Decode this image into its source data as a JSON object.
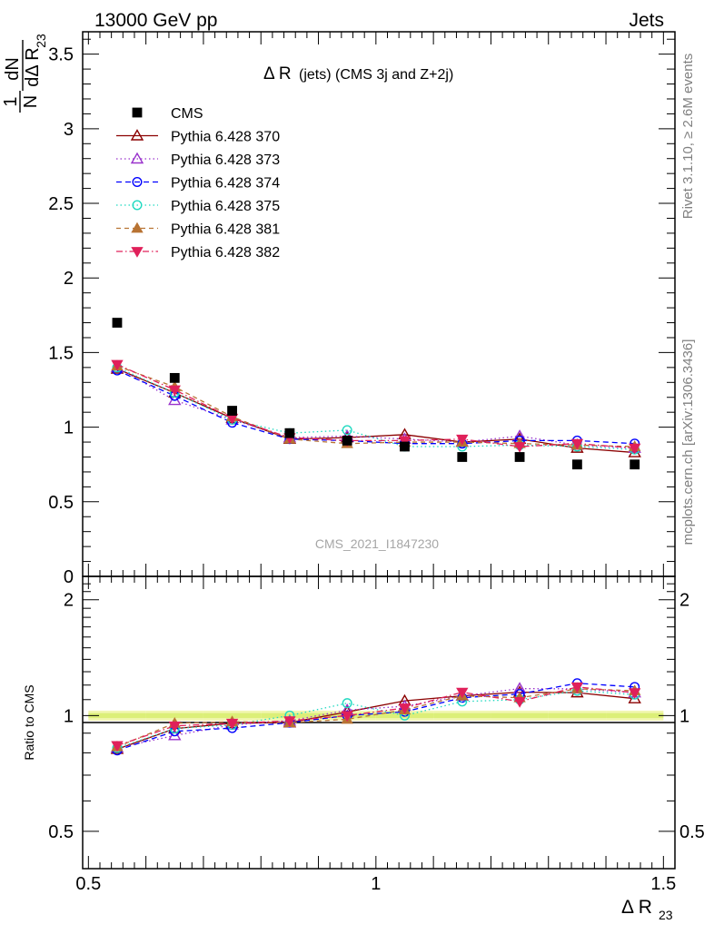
{
  "header": {
    "left": "13000 GeV pp",
    "right": "Jets"
  },
  "side_texts": {
    "rivet": "Rivet 3.1.10, ≥ 2.6M events",
    "mcplots": "mcplots.cern.ch [arXiv:1306.3436]"
  },
  "watermark": "CMS_2021_I1847230",
  "plot_title": {
    "main": "Δ R",
    "detail": " (jets) (CMS 3j and Z+2j)"
  },
  "ylabel_top": {
    "frac_num": "1",
    "frac_den": "N",
    "dN": "dN",
    "dDelta": "dΔ R",
    "sub": "23"
  },
  "ylabel_ratio": "Ratio to CMS",
  "xlabel": {
    "main": "Δ R",
    "sub": "23"
  },
  "chart_data": {
    "type": "line",
    "x": [
      0.55,
      0.65,
      0.75,
      0.85,
      0.95,
      1.05,
      1.15,
      1.25,
      1.35,
      1.45
    ],
    "xlim": [
      0.49,
      1.52
    ],
    "ylim_main": [
      0,
      3.65
    ],
    "ylim_ratio": [
      0.4,
      2.3
    ],
    "xticks": [
      0.5,
      1,
      1.5
    ],
    "xtick_labels": [
      "0.5",
      "1",
      "1.5"
    ],
    "yticks_main": [
      0,
      0.5,
      1,
      1.5,
      2,
      2.5,
      3,
      3.5
    ],
    "ytick_labels_main": [
      "0",
      "0.5",
      "1",
      "1.5",
      "2",
      "2.5",
      "3",
      "3.5"
    ],
    "yticks_ratio": [
      0.5,
      1,
      2
    ],
    "ytick_labels_ratio": [
      "0.5",
      "1",
      "2"
    ],
    "data": {
      "name": "CMS",
      "values": [
        1.7,
        1.33,
        1.11,
        0.96,
        0.91,
        0.87,
        0.8,
        0.8,
        0.75,
        0.75
      ]
    },
    "series": [
      {
        "name": "Pythia 6.428 370",
        "color": "#8b0000",
        "dash": "",
        "marker": "triangle-open",
        "values": [
          1.39,
          1.23,
          1.06,
          0.92,
          0.93,
          0.95,
          0.9,
          0.92,
          0.86,
          0.83
        ]
      },
      {
        "name": "Pythia 6.428 373",
        "color": "#9932cc",
        "dash": "1.5,3",
        "marker": "triangle-open",
        "values": [
          1.4,
          1.18,
          1.05,
          0.93,
          0.94,
          0.92,
          0.9,
          0.94,
          0.88,
          0.86
        ]
      },
      {
        "name": "Pythia 6.428 374",
        "color": "#0000ff",
        "dash": "6,4",
        "marker": "circle-open",
        "values": [
          1.38,
          1.21,
          1.03,
          0.92,
          0.91,
          0.89,
          0.89,
          0.91,
          0.91,
          0.89
        ]
      },
      {
        "name": "Pythia 6.428 375",
        "color": "#1fd9c0",
        "dash": "1.5,3",
        "marker": "circle-open",
        "values": [
          1.4,
          1.23,
          1.05,
          0.96,
          0.98,
          0.87,
          0.87,
          0.88,
          0.87,
          0.85
        ]
      },
      {
        "name": "Pythia 6.428 381",
        "color": "#b87333",
        "dash": "5,4",
        "marker": "triangle-filled",
        "values": [
          1.41,
          1.27,
          1.07,
          0.92,
          0.89,
          0.9,
          0.9,
          0.89,
          0.88,
          0.87
        ]
      },
      {
        "name": "Pythia 6.428 382",
        "color": "#e0205a",
        "dash": "7,3,1.5,3",
        "marker": "triangle-down-filled",
        "values": [
          1.42,
          1.25,
          1.06,
          0.93,
          0.91,
          0.91,
          0.92,
          0.87,
          0.89,
          0.86
        ]
      }
    ]
  }
}
